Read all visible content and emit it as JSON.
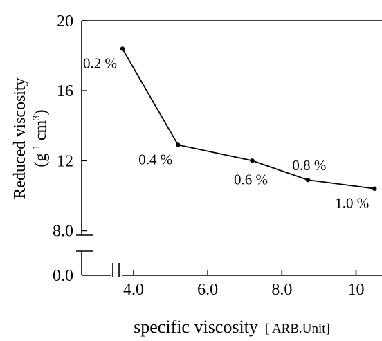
{
  "chart_data": {
    "type": "line",
    "title": "",
    "xlabel": "specific viscosity",
    "xlabel_unit": "[ ARB.Unit]",
    "ylabel_line1": "Reduced viscosity",
    "ylabel_line2": "(g-1 cm3)",
    "ylabel_parts": {
      "open": "(g",
      "sup1": "-1",
      "mid": " cm",
      "sup2": "3",
      "close": ")"
    },
    "xlim": [
      2.6,
      10.7
    ],
    "ylim_upper": [
      6.0,
      20.0
    ],
    "ylim_lower": [
      0.0,
      2.0
    ],
    "axis_break": true,
    "x_ticks": [
      {
        "value": 4.0,
        "label": "4.0"
      },
      {
        "value": 6.0,
        "label": "6.0"
      },
      {
        "value": 8.0,
        "label": "8.0"
      },
      {
        "value": 10.0,
        "label": "10"
      }
    ],
    "y_ticks": [
      {
        "value": 8.0,
        "label": "8.0"
      },
      {
        "value": 12.0,
        "label": "12"
      },
      {
        "value": 16.0,
        "label": "16"
      },
      {
        "value": 20.0,
        "label": "20"
      }
    ],
    "y_zero_label": "0.0",
    "series": [
      {
        "color": "#000000",
        "points": [
          {
            "x": 3.7,
            "y": 18.4,
            "label": "0.2 %",
            "label_pos": "below-left"
          },
          {
            "x": 5.2,
            "y": 12.9,
            "label": "0.4 %",
            "label_pos": "below-left"
          },
          {
            "x": 7.2,
            "y": 12.0,
            "label": "0.6 %",
            "label_pos": "below"
          },
          {
            "x": 8.7,
            "y": 10.9,
            "label": "0.8 %",
            "label_pos": "above"
          },
          {
            "x": 10.5,
            "y": 10.4,
            "label": "1.0 %",
            "label_pos": "below-left"
          }
        ]
      }
    ],
    "grid": false,
    "legend": "none"
  }
}
